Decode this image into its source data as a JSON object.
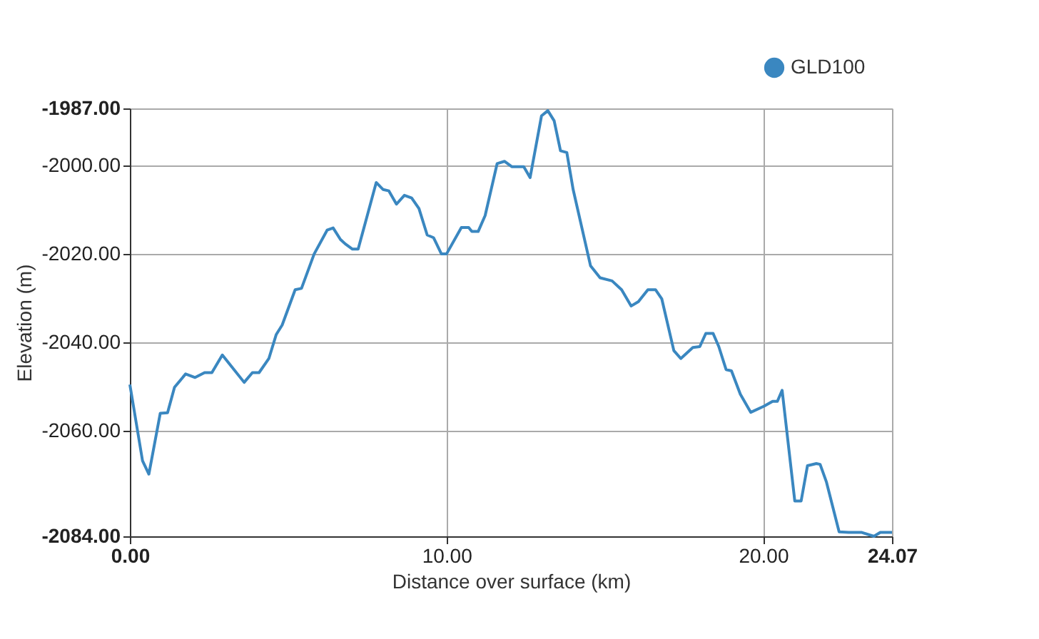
{
  "chart_data": {
    "type": "line",
    "xlabel": "Distance over surface (km)",
    "ylabel": "Elevation (m)",
    "xlim": [
      0,
      24.07
    ],
    "xticks": [
      {
        "value": 0,
        "label": "0.00"
      },
      {
        "value": 10,
        "label": "10.00"
      },
      {
        "value": 20,
        "label": "20.00"
      },
      {
        "value": 24.07,
        "label": "24.07"
      }
    ],
    "ylim": [
      -2084,
      -1987
    ],
    "yticks": [
      {
        "value": -2084,
        "label": "-2084.00"
      },
      {
        "value": -2060,
        "label": "-2060.00"
      },
      {
        "value": -2040,
        "label": "-2040.00"
      },
      {
        "value": -2020,
        "label": "-2020.00"
      },
      {
        "value": -2000,
        "label": "-2000.00"
      },
      {
        "value": -1987,
        "label": "-1987.00"
      }
    ],
    "grid": true,
    "legend": "top right",
    "marker": "none",
    "line_style": "solid",
    "x": [
      0,
      0.4,
      0.6,
      0.96,
      1.19,
      1.41,
      1.76,
      2.06,
      2.36,
      2.59,
      2.92,
      3.61,
      3.87,
      4.08,
      4.39,
      4.62,
      4.81,
      5.22,
      5.42,
      5.82,
      6.23,
      6.42,
      6.65,
      6.8,
      7.03,
      7.21,
      7.78,
      8.0,
      8.18,
      8.42,
      8.67,
      8.9,
      9.13,
      9.39,
      9.59,
      9.84,
      10.0,
      10.47,
      10.7,
      10.8,
      11.0,
      11.22,
      11.6,
      11.83,
      12.06,
      12.44,
      12.64,
      13.0,
      13.2,
      13.4,
      13.6,
      13.8,
      14.0,
      14.55,
      14.85,
      15.23,
      15.53,
      15.83,
      16.06,
      16.36,
      16.6,
      16.8,
      17.18,
      17.4,
      17.78,
      18.0,
      18.19,
      18.42,
      18.6,
      18.83,
      19.0,
      19.28,
      19.61,
      20.03,
      20.3,
      20.45,
      20.6,
      21.0,
      21.2,
      21.4,
      21.68,
      21.8,
      22.0,
      22.4,
      22.7,
      23.1,
      23.5,
      23.7,
      24.07
    ],
    "series": [
      {
        "name": "GLD100",
        "color": "#3a87c0",
        "values": [
          -2049.6,
          -2066.9,
          -2069.9,
          -2056.1,
          -2056,
          -2050.2,
          -2047.2,
          -2048,
          -2046.9,
          -2046.9,
          -2042.9,
          -2049.1,
          -2046.9,
          -2046.9,
          -2043.7,
          -2038.3,
          -2036.1,
          -2028.1,
          -2027.8,
          -2020,
          -2014.6,
          -2014.1,
          -2016.7,
          -2017.7,
          -2018.9,
          -2018.9,
          -2003.8,
          -2005.4,
          -2005.7,
          -2008.7,
          -2006.7,
          -2007.3,
          -2009.7,
          -2015.7,
          -2016.3,
          -2020,
          -2020,
          -2014,
          -2014,
          -2014.9,
          -2014.9,
          -2011.3,
          -1999.5,
          -1999,
          -2000.2,
          -2000.2,
          -2002.7,
          -1988.7,
          -1987.5,
          -1989.8,
          -1996.6,
          -1997,
          -2005.4,
          -2022.7,
          -2025.4,
          -2026.1,
          -2028.1,
          -2031.8,
          -2030.8,
          -2028.1,
          -2028.1,
          -2030.2,
          -2041.9,
          -2043.7,
          -2041.2,
          -2041,
          -2038,
          -2038,
          -2041,
          -2046.2,
          -2046.5,
          -2051.8,
          -2055.9,
          -2054.5,
          -2053.4,
          -2053.4,
          -2050.9,
          -2076,
          -2076,
          -2068,
          -2067.5,
          -2067.7,
          -2071.7,
          -2083,
          -2083.1,
          -2083.1,
          -2084,
          -2083.1,
          -2083.1
        ]
      }
    ]
  }
}
